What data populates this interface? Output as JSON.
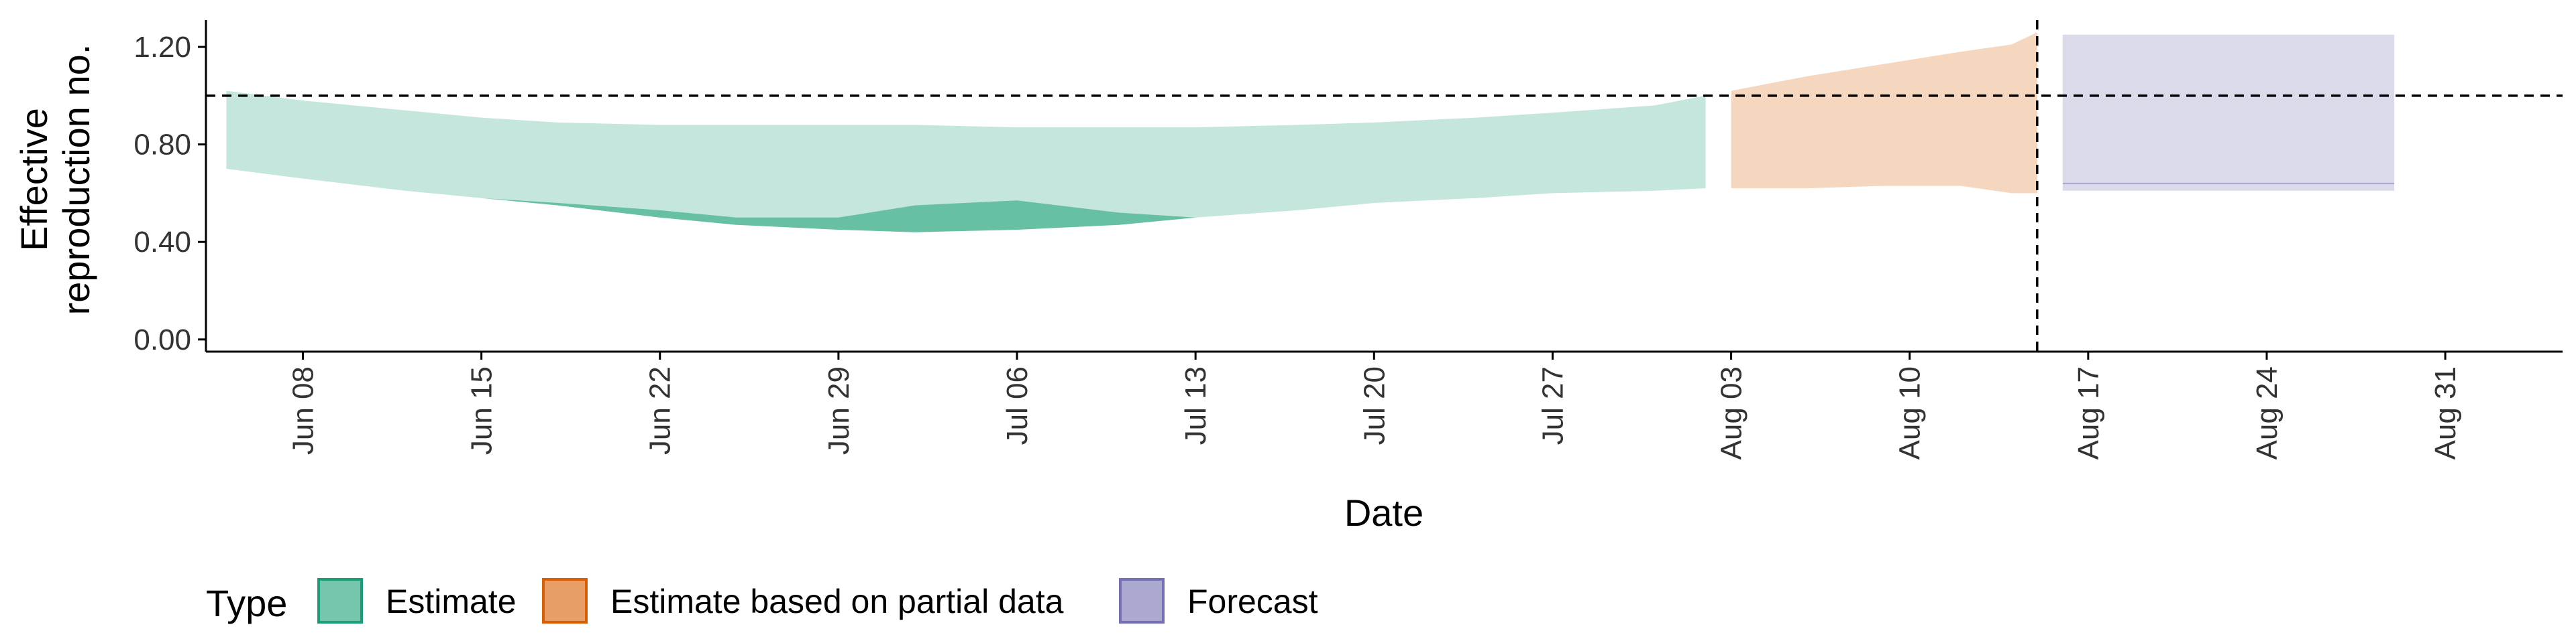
{
  "chart_data": {
    "type": "area",
    "xlabel": "Date",
    "ylabel_lines": [
      "Effective",
      "reproduction no."
    ],
    "x_ticks": [
      "Jun 08",
      "Jun 15",
      "Jun 22",
      "Jun 29",
      "Jul 06",
      "Jul 13",
      "Jul 20",
      "Jul 27",
      "Aug 03",
      "Aug 10",
      "Aug 17",
      "Aug 24",
      "Aug 31"
    ],
    "y_ticks": [
      "0.00",
      "0.40",
      "0.80",
      "1.20"
    ],
    "ylim": [
      -0.05,
      1.31
    ],
    "xlim_days_from_jun01": [
      3.2,
      95.6
    ],
    "reference_lines": {
      "horizontal_y": 1.0,
      "vertical_date": "Aug 15"
    },
    "legend": {
      "title": "Type",
      "position": "bottom",
      "entries": [
        "Estimate",
        "Estimate based on partial data",
        "Forecast"
      ]
    },
    "colors": {
      "Estimate": "#1b9e77",
      "Estimate based on partial data": "#d95f02",
      "Forecast": "#7570b3"
    },
    "series": [
      {
        "name": "Estimate",
        "x": [
          "Jun 05",
          "Jun 08",
          "Jun 12",
          "Jun 15",
          "Jun 18",
          "Jun 22",
          "Jun 25",
          "Jun 29",
          "Jul 02",
          "Jul 06",
          "Jul 10",
          "Jul 13",
          "Jul 17",
          "Jul 20",
          "Jul 24",
          "Jul 27",
          "Jul 31",
          "Aug 02"
        ],
        "outer_lower": [
          0.7,
          0.66,
          0.61,
          0.58,
          0.55,
          0.5,
          0.47,
          0.45,
          0.44,
          0.45,
          0.47,
          0.5,
          0.53,
          0.56,
          0.58,
          0.6,
          0.61,
          0.62
        ],
        "outer_upper": [
          1.02,
          0.98,
          0.94,
          0.91,
          0.89,
          0.88,
          0.88,
          0.88,
          0.88,
          0.87,
          0.87,
          0.87,
          0.88,
          0.89,
          0.91,
          0.93,
          0.96,
          1.0
        ],
        "inner_lower": [
          0.7,
          0.66,
          0.61,
          0.58,
          0.55,
          0.5,
          0.47,
          0.45,
          0.44,
          0.45,
          0.47,
          0.5,
          0.53,
          0.56,
          0.58,
          0.6,
          0.61,
          0.62
        ],
        "inner_upper": [
          0.7,
          0.66,
          0.61,
          0.58,
          0.56,
          0.53,
          0.5,
          0.5,
          0.55,
          0.57,
          0.52,
          0.5,
          0.53,
          0.56,
          0.58,
          0.6,
          0.61,
          0.62
        ]
      },
      {
        "name": "Estimate based on partial data",
        "x": [
          "Aug 03",
          "Aug 06",
          "Aug 09",
          "Aug 12",
          "Aug 14",
          "Aug 15"
        ],
        "outer_lower": [
          0.62,
          0.62,
          0.63,
          0.63,
          0.6,
          0.6
        ],
        "outer_upper": [
          1.02,
          1.08,
          1.13,
          1.18,
          1.21,
          1.26
        ]
      },
      {
        "name": "Forecast",
        "x": [
          "Aug 16",
          "Aug 29"
        ],
        "outer_lower": [
          0.61,
          0.61
        ],
        "outer_upper": [
          1.25,
          1.25
        ],
        "median": [
          0.64,
          0.64
        ]
      }
    ],
    "grid": false
  }
}
